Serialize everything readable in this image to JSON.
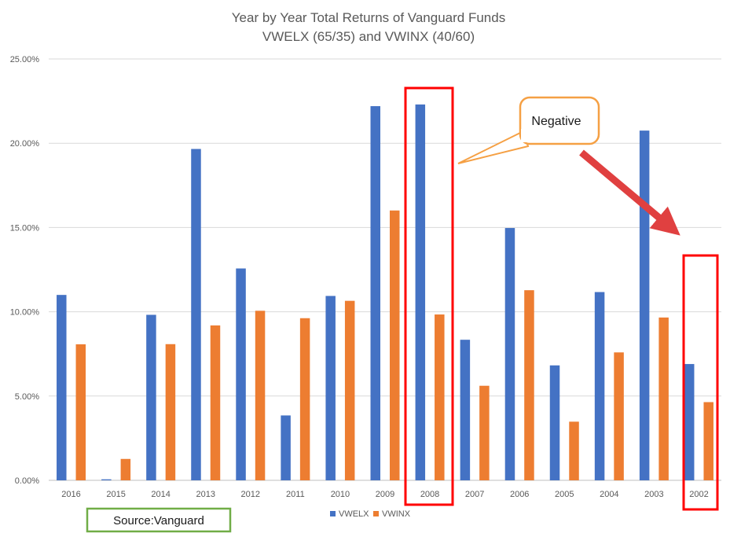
{
  "chart_data": {
    "type": "bar",
    "title": "Year by Year Total Returns of Vanguard Funds",
    "subtitle": "VWELX (65/35) and VWINX (40/60)",
    "categories": [
      "2016",
      "2015",
      "2014",
      "2013",
      "2012",
      "2011",
      "2010",
      "2009",
      "2008",
      "2007",
      "2006",
      "2005",
      "2004",
      "2003",
      "2002"
    ],
    "series": [
      {
        "name": "VWELX",
        "color": "#4472C4",
        "values": [
          11.0,
          0.06,
          9.82,
          19.66,
          12.57,
          3.85,
          10.94,
          22.2,
          22.3,
          8.34,
          14.97,
          6.82,
          11.17,
          20.75,
          6.9
        ]
      },
      {
        "name": "VWINX",
        "color": "#ED7D31",
        "values": [
          8.07,
          1.27,
          8.08,
          9.19,
          10.06,
          9.62,
          10.65,
          16.01,
          9.84,
          5.61,
          11.28,
          3.48,
          7.59,
          9.66,
          4.64
        ]
      }
    ],
    "y_tick_labels": [
      "0.00%",
      "5.00%",
      "10.00%",
      "15.00%",
      "20.00%",
      "25.00%"
    ],
    "ylim": [
      0,
      25
    ],
    "grid": true,
    "legend": "bottom",
    "highlighted_categories": [
      "2008",
      "2002"
    ],
    "annotations": {
      "callout": "Negative",
      "source": "Source:Vanguard"
    }
  }
}
